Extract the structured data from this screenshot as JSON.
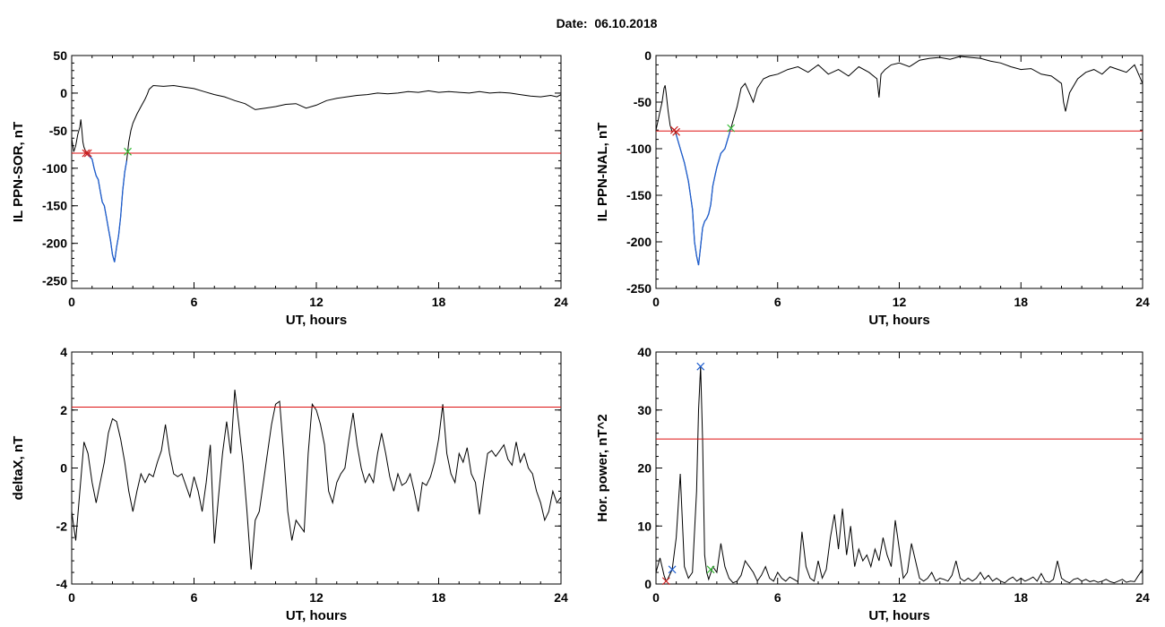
{
  "figure_title": "Date:  06.10.2018",
  "colors": {
    "trace": "#000000",
    "threshold": "#dd1111",
    "highlight": "#1f5fd0",
    "marker_start": "#cc2222",
    "marker_end": "#33bb33",
    "marker_peak": "#1f5fd0"
  },
  "chart_data": [
    {
      "id": "sor",
      "type": "line",
      "xlabel": "UT, hours",
      "ylabel": "IL PPN-SOR, nT",
      "xlim": [
        0,
        24
      ],
      "ylim": [
        -260,
        50
      ],
      "xticks": [
        0,
        6,
        12,
        18,
        24
      ],
      "yticks": [
        50,
        0,
        -50,
        -100,
        -150,
        -200,
        -250
      ],
      "threshold": -80,
      "highlight_range": [
        0.8,
        2.75
      ],
      "markers": [
        {
          "x": 0.7,
          "y": -80,
          "color": "marker_start"
        },
        {
          "x": 0.8,
          "y": -80,
          "color": "marker_start"
        },
        {
          "x": 2.75,
          "y": -78,
          "color": "marker_end"
        }
      ],
      "series": [
        {
          "x": [
            0,
            0.1,
            0.2,
            0.3,
            0.4,
            0.45,
            0.5,
            0.55,
            0.6,
            0.7,
            0.8,
            0.9,
            1.0,
            1.1,
            1.2,
            1.3,
            1.4,
            1.5,
            1.6,
            1.7,
            1.8,
            1.9,
            2.0,
            2.1,
            2.2,
            2.3,
            2.4,
            2.5,
            2.6,
            2.7,
            2.8,
            2.9,
            3.0,
            3.2,
            3.4,
            3.6,
            3.7,
            3.8,
            4.0,
            4.5,
            5.0,
            5.5,
            6.0,
            6.5,
            7.0,
            7.5,
            8.0,
            8.5,
            9.0,
            9.5,
            10.0,
            10.5,
            11.0,
            11.5,
            12.0,
            12.5,
            13.0,
            13.5,
            14.0,
            14.5,
            15.0,
            15.5,
            16.0,
            16.5,
            17.0,
            17.5,
            18.0,
            18.5,
            19.0,
            19.5,
            20.0,
            20.5,
            21.0,
            21.5,
            22.0,
            22.5,
            23.0,
            23.5,
            23.8,
            24.0
          ],
          "y": [
            -60,
            -78,
            -70,
            -55,
            -45,
            -35,
            -50,
            -65,
            -72,
            -78,
            -80,
            -85,
            -88,
            -100,
            -110,
            -115,
            -130,
            -145,
            -150,
            -165,
            -180,
            -195,
            -215,
            -225,
            -205,
            -190,
            -165,
            -130,
            -105,
            -90,
            -65,
            -50,
            -40,
            -28,
            -18,
            -8,
            -2,
            5,
            10,
            9,
            10,
            8,
            6,
            2,
            -2,
            -5,
            -10,
            -14,
            -22,
            -20,
            -18,
            -15,
            -14,
            -20,
            -16,
            -10,
            -7,
            -5,
            -3,
            -2,
            0,
            -1,
            0,
            2,
            1,
            3,
            1,
            2,
            1,
            0,
            2,
            0,
            1,
            0,
            -2,
            -4,
            -5,
            -3,
            -5,
            -2
          ]
        }
      ]
    },
    {
      "id": "nal",
      "type": "line",
      "xlabel": "UT, hours",
      "ylabel": "IL PPN-NAL, nT",
      "xlim": [
        0,
        24
      ],
      "ylim": [
        -250,
        0
      ],
      "xticks": [
        0,
        6,
        12,
        18,
        24
      ],
      "yticks": [
        0,
        -50,
        -100,
        -150,
        -200,
        -250
      ],
      "threshold": -81,
      "highlight_range": [
        1.0,
        3.7
      ],
      "markers": [
        {
          "x": 0.9,
          "y": -80,
          "color": "marker_start"
        },
        {
          "x": 1.0,
          "y": -82,
          "color": "marker_start"
        },
        {
          "x": 3.7,
          "y": -78,
          "color": "marker_end"
        }
      ],
      "series": [
        {
          "x": [
            0,
            0.1,
            0.2,
            0.3,
            0.4,
            0.45,
            0.5,
            0.6,
            0.7,
            0.8,
            0.9,
            1.0,
            1.2,
            1.4,
            1.6,
            1.8,
            1.9,
            2.0,
            2.1,
            2.2,
            2.3,
            2.4,
            2.5,
            2.6,
            2.7,
            2.8,
            2.9,
            3.0,
            3.2,
            3.4,
            3.6,
            3.7,
            3.8,
            4.0,
            4.2,
            4.4,
            4.6,
            4.8,
            5.0,
            5.3,
            5.6,
            6.0,
            6.5,
            7.0,
            7.5,
            8.0,
            8.5,
            9.0,
            9.5,
            10.0,
            10.5,
            10.9,
            11.0,
            11.1,
            11.3,
            11.6,
            12.0,
            12.5,
            13.0,
            13.5,
            14.0,
            14.5,
            15.0,
            15.5,
            16.0,
            16.5,
            17.0,
            17.5,
            18.0,
            18.5,
            19.0,
            19.5,
            20.0,
            20.1,
            20.2,
            20.4,
            20.8,
            21.2,
            21.6,
            22.0,
            22.4,
            22.8,
            23.2,
            23.6,
            24.0
          ],
          "y": [
            -80,
            -70,
            -60,
            -50,
            -35,
            -32,
            -40,
            -60,
            -75,
            -82,
            -80,
            -85,
            -100,
            -115,
            -135,
            -165,
            -200,
            -215,
            -225,
            -205,
            -185,
            -178,
            -175,
            -170,
            -160,
            -140,
            -130,
            -120,
            -105,
            -100,
            -85,
            -78,
            -70,
            -55,
            -35,
            -30,
            -40,
            -50,
            -35,
            -25,
            -22,
            -20,
            -15,
            -12,
            -18,
            -10,
            -20,
            -15,
            -22,
            -12,
            -18,
            -25,
            -45,
            -20,
            -15,
            -10,
            -8,
            -12,
            -5,
            -3,
            -2,
            -4,
            -1,
            -2,
            -3,
            -6,
            -8,
            -12,
            -15,
            -14,
            -20,
            -22,
            -30,
            -50,
            -60,
            -40,
            -25,
            -18,
            -15,
            -20,
            -12,
            -15,
            -18,
            -10,
            -30
          ]
        }
      ]
    },
    {
      "id": "deltax",
      "type": "line",
      "xlabel": "UT, hours",
      "ylabel": "deltaX, nT",
      "xlim": [
        0,
        24
      ],
      "ylim": [
        -4,
        4
      ],
      "xticks": [
        0,
        6,
        12,
        18,
        24
      ],
      "yticks": [
        4,
        2,
        0,
        -2,
        -4
      ],
      "threshold": 2.1,
      "series": [
        {
          "x": [
            0,
            0.2,
            0.4,
            0.6,
            0.8,
            1.0,
            1.2,
            1.4,
            1.6,
            1.8,
            2.0,
            2.2,
            2.4,
            2.6,
            2.8,
            3.0,
            3.2,
            3.4,
            3.6,
            3.8,
            4.0,
            4.2,
            4.4,
            4.6,
            4.8,
            5.0,
            5.2,
            5.4,
            5.6,
            5.8,
            6.0,
            6.2,
            6.4,
            6.6,
            6.8,
            7.0,
            7.2,
            7.4,
            7.6,
            7.8,
            8.0,
            8.2,
            8.4,
            8.6,
            8.8,
            9.0,
            9.2,
            9.4,
            9.6,
            9.8,
            10.0,
            10.2,
            10.4,
            10.6,
            10.8,
            11.0,
            11.2,
            11.4,
            11.6,
            11.8,
            12.0,
            12.2,
            12.4,
            12.6,
            12.8,
            13.0,
            13.2,
            13.4,
            13.6,
            13.8,
            14.0,
            14.2,
            14.4,
            14.6,
            14.8,
            15.0,
            15.2,
            15.4,
            15.6,
            15.8,
            16.0,
            16.2,
            16.4,
            16.6,
            16.8,
            17.0,
            17.2,
            17.4,
            17.6,
            17.8,
            18.0,
            18.2,
            18.4,
            18.6,
            18.8,
            19.0,
            19.2,
            19.4,
            19.6,
            19.8,
            20.0,
            20.2,
            20.4,
            20.6,
            20.8,
            21.0,
            21.2,
            21.4,
            21.6,
            21.8,
            22.0,
            22.2,
            22.4,
            22.6,
            22.8,
            23.0,
            23.2,
            23.4,
            23.6,
            23.8,
            24.0
          ],
          "y": [
            -1.5,
            -2.5,
            -0.8,
            0.9,
            0.5,
            -0.5,
            -1.2,
            -0.5,
            0.2,
            1.2,
            1.7,
            1.6,
            1.0,
            0.2,
            -0.8,
            -1.5,
            -0.8,
            -0.2,
            -0.5,
            -0.2,
            -0.3,
            0.2,
            0.6,
            1.5,
            0.5,
            -0.2,
            -0.3,
            -0.2,
            -0.6,
            -1.0,
            -0.3,
            -0.8,
            -1.5,
            -0.5,
            0.8,
            -2.6,
            -1.0,
            0.5,
            1.6,
            0.5,
            2.7,
            1.5,
            0.2,
            -1.5,
            -3.5,
            -1.8,
            -1.5,
            -0.5,
            0.5,
            1.5,
            2.2,
            2.3,
            0.5,
            -1.5,
            -2.5,
            -1.8,
            -2.0,
            -2.2,
            0.5,
            2.2,
            2.0,
            1.5,
            0.8,
            -0.8,
            -1.2,
            -0.5,
            -0.2,
            0.0,
            1.0,
            1.9,
            0.8,
            0.0,
            -0.5,
            -0.2,
            -0.5,
            0.5,
            1.2,
            0.5,
            -0.3,
            -0.8,
            -0.2,
            -0.6,
            -0.5,
            -0.2,
            -0.8,
            -1.5,
            -0.5,
            -0.6,
            -0.3,
            0.2,
            1.0,
            2.2,
            0.5,
            -0.2,
            -0.5,
            0.5,
            0.2,
            0.7,
            -0.2,
            -0.5,
            -1.6,
            -0.5,
            0.5,
            0.6,
            0.4,
            0.6,
            0.8,
            0.3,
            0.1,
            0.9,
            0.2,
            0.5,
            0.0,
            -0.2,
            -0.8,
            -1.2,
            -1.8,
            -1.5,
            -0.8,
            -1.2,
            -1.0
          ]
        }
      ]
    },
    {
      "id": "power",
      "type": "line",
      "xlabel": "UT, hours",
      "ylabel": "Hor. power, nT^2",
      "xlim": [
        0,
        24
      ],
      "ylim": [
        0,
        40
      ],
      "xticks": [
        0,
        6,
        12,
        18,
        24
      ],
      "yticks": [
        40,
        30,
        20,
        10,
        0
      ],
      "threshold": 25,
      "markers": [
        {
          "x": 0.5,
          "y": 0.5,
          "color": "marker_start"
        },
        {
          "x": 0.8,
          "y": 2.5,
          "color": "marker_peak"
        },
        {
          "x": 2.2,
          "y": 37.5,
          "color": "marker_peak"
        },
        {
          "x": 2.7,
          "y": 2.5,
          "color": "marker_end"
        }
      ],
      "series": [
        {
          "x": [
            0,
            0.2,
            0.4,
            0.5,
            0.6,
            0.8,
            1.0,
            1.2,
            1.4,
            1.6,
            1.8,
            2.0,
            2.1,
            2.2,
            2.3,
            2.4,
            2.5,
            2.6,
            2.8,
            3.0,
            3.2,
            3.4,
            3.6,
            3.8,
            4.0,
            4.2,
            4.4,
            4.6,
            4.8,
            5.0,
            5.2,
            5.4,
            5.6,
            5.8,
            6.0,
            6.2,
            6.4,
            6.6,
            6.8,
            7.0,
            7.2,
            7.4,
            7.6,
            7.8,
            8.0,
            8.2,
            8.4,
            8.6,
            8.8,
            9.0,
            9.2,
            9.4,
            9.6,
            9.8,
            10.0,
            10.2,
            10.4,
            10.6,
            10.8,
            11.0,
            11.2,
            11.4,
            11.6,
            11.8,
            12.0,
            12.2,
            12.4,
            12.6,
            12.8,
            13.0,
            13.2,
            13.4,
            13.6,
            13.8,
            14.0,
            14.2,
            14.4,
            14.6,
            14.8,
            15.0,
            15.2,
            15.4,
            15.6,
            15.8,
            16.0,
            16.2,
            16.4,
            16.6,
            16.8,
            17.0,
            17.2,
            17.4,
            17.6,
            17.8,
            18.0,
            18.2,
            18.4,
            18.6,
            18.8,
            19.0,
            19.2,
            19.4,
            19.6,
            19.8,
            20.0,
            20.2,
            20.4,
            20.6,
            20.8,
            21.0,
            21.2,
            21.4,
            21.6,
            21.8,
            22.0,
            22.2,
            22.4,
            22.6,
            22.8,
            23.0,
            23.2,
            23.4,
            23.6,
            23.8,
            24.0
          ],
          "y": [
            2.0,
            4.5,
            1.5,
            0.5,
            1.0,
            2.5,
            8.0,
            19.0,
            3.0,
            1.0,
            2.0,
            16.0,
            30.0,
            37.5,
            25.0,
            5.0,
            2.0,
            0.8,
            3.0,
            2.0,
            7.0,
            3.0,
            1.0,
            0.2,
            0.5,
            1.5,
            4.0,
            3.0,
            2.0,
            0.5,
            1.5,
            3.0,
            1.0,
            0.5,
            2.0,
            1.0,
            0.5,
            1.2,
            0.8,
            0.4,
            9.0,
            3.0,
            1.0,
            0.5,
            4.0,
            1.0,
            2.5,
            8.0,
            12.0,
            6.0,
            13.0,
            5.0,
            10.0,
            3.0,
            6.0,
            4.0,
            5.0,
            3.0,
            6.0,
            4.0,
            8.0,
            5.0,
            3.0,
            11.0,
            6.0,
            1.0,
            2.0,
            7.0,
            4.0,
            1.0,
            0.5,
            1.0,
            2.0,
            0.5,
            1.0,
            0.8,
            0.5,
            1.5,
            4.0,
            1.0,
            0.5,
            1.0,
            0.5,
            1.0,
            2.0,
            0.8,
            1.5,
            0.5,
            1.0,
            0.5,
            0.2,
            0.8,
            1.2,
            0.5,
            1.0,
            0.5,
            0.8,
            1.2,
            0.5,
            1.8,
            0.5,
            0.3,
            0.8,
            4.0,
            1.0,
            0.5,
            0.2,
            0.8,
            1.0,
            0.5,
            0.8,
            0.4,
            0.6,
            0.3,
            0.5,
            0.8,
            0.4,
            0.2,
            0.5,
            0.8,
            0.3,
            0.5,
            0.4,
            1.5,
            2.5
          ]
        }
      ]
    }
  ]
}
